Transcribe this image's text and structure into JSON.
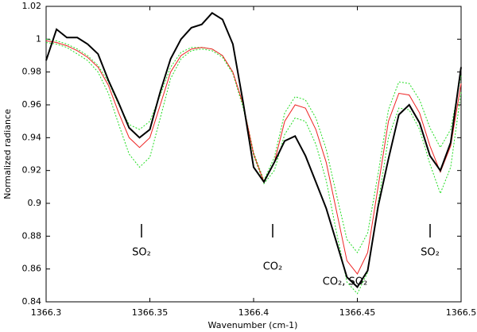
{
  "chart_data": {
    "type": "line",
    "xlabel": "Wavenumber (cm-1)",
    "ylabel": "Normalized radiance",
    "x": [
      1366.3,
      1366.305,
      1366.31,
      1366.315,
      1366.32,
      1366.325,
      1366.33,
      1366.335,
      1366.34,
      1366.345,
      1366.35,
      1366.355,
      1366.36,
      1366.365,
      1366.37,
      1366.375,
      1366.38,
      1366.385,
      1366.39,
      1366.395,
      1366.4,
      1366.405,
      1366.41,
      1366.415,
      1366.42,
      1366.425,
      1366.43,
      1366.435,
      1366.44,
      1366.445,
      1366.45,
      1366.455,
      1366.46,
      1366.465,
      1366.47,
      1366.475,
      1366.48,
      1366.485,
      1366.49,
      1366.495,
      1366.5
    ],
    "series": [
      {
        "color": "#22dd22",
        "dashed": true,
        "values": [
          1.0,
          0.999,
          0.997,
          0.994,
          0.99,
          0.984,
          0.974,
          0.96,
          0.948,
          0.945,
          0.95,
          0.966,
          0.983,
          0.992,
          0.995,
          0.995,
          0.994,
          0.99,
          0.98,
          0.96,
          0.931,
          0.914,
          0.928,
          0.955,
          0.965,
          0.963,
          0.952,
          0.933,
          0.905,
          0.878,
          0.87,
          0.882,
          0.918,
          0.957,
          0.974,
          0.973,
          0.963,
          0.946,
          0.934,
          0.945,
          0.978
        ]
      },
      {
        "color": "#22dd22",
        "dashed": true,
        "values": [
          0.998,
          0.997,
          0.995,
          0.991,
          0.987,
          0.98,
          0.967,
          0.948,
          0.93,
          0.922,
          0.928,
          0.952,
          0.976,
          0.988,
          0.993,
          0.994,
          0.993,
          0.989,
          0.979,
          0.958,
          0.929,
          0.912,
          0.92,
          0.942,
          0.952,
          0.95,
          0.936,
          0.914,
          0.882,
          0.852,
          0.845,
          0.858,
          0.9,
          0.94,
          0.958,
          0.957,
          0.945,
          0.924,
          0.906,
          0.922,
          0.968
        ]
      },
      {
        "color": "#ee2222",
        "dashed": false,
        "values": [
          0.999,
          0.998,
          0.996,
          0.993,
          0.989,
          0.983,
          0.972,
          0.955,
          0.94,
          0.934,
          0.94,
          0.96,
          0.98,
          0.99,
          0.994,
          0.995,
          0.994,
          0.99,
          0.98,
          0.96,
          0.93,
          0.913,
          0.925,
          0.95,
          0.96,
          0.958,
          0.945,
          0.925,
          0.895,
          0.865,
          0.857,
          0.87,
          0.91,
          0.95,
          0.967,
          0.966,
          0.955,
          0.935,
          0.919,
          0.935,
          0.973
        ]
      },
      {
        "color": "#000000",
        "dashed": false,
        "values": [
          0.987,
          1.006,
          1.001,
          1.001,
          0.997,
          0.991,
          0.975,
          0.961,
          0.946,
          0.94,
          0.945,
          0.968,
          0.988,
          1.0,
          1.007,
          1.009,
          1.016,
          1.012,
          0.997,
          0.961,
          0.922,
          0.913,
          0.925,
          0.938,
          0.941,
          0.929,
          0.913,
          0.897,
          0.876,
          0.855,
          0.849,
          0.859,
          0.898,
          0.927,
          0.954,
          0.96,
          0.949,
          0.929,
          0.92,
          0.937,
          0.983
        ]
      }
    ],
    "xlim": [
      1366.3,
      1366.5
    ],
    "xticks": [
      1366.3,
      1366.35,
      1366.4,
      1366.45,
      1366.5
    ],
    "ylim": [
      0.84,
      1.02
    ],
    "yticks": [
      0.84,
      0.86,
      0.88,
      0.9,
      0.92,
      0.94,
      0.96,
      0.98,
      1,
      1.02
    ],
    "annotations": [
      "SO₂",
      "CO₂",
      "CO₂, SO₂",
      "SO₂"
    ]
  }
}
